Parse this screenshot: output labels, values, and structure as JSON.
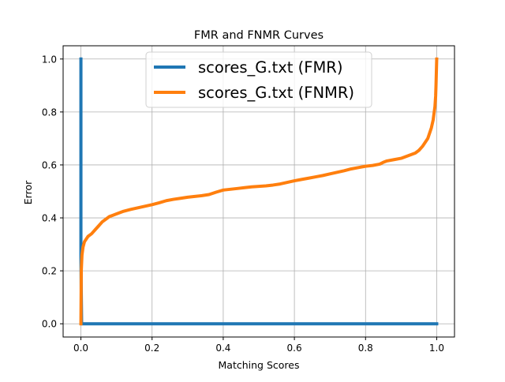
{
  "chart_data": {
    "type": "line",
    "title": "FMR and FNMR Curves",
    "xlabel": "Matching Scores",
    "ylabel": "Error",
    "xlim": [
      -0.05,
      1.05
    ],
    "ylim": [
      -0.05,
      1.05
    ],
    "xticks": [
      0.0,
      0.2,
      0.4,
      0.6,
      0.8,
      1.0
    ],
    "yticks": [
      0.0,
      0.2,
      0.4,
      0.6,
      0.8,
      1.0
    ],
    "xtick_labels": [
      "0.0",
      "0.2",
      "0.4",
      "0.6",
      "0.8",
      "1.0"
    ],
    "ytick_labels": [
      "0.0",
      "0.2",
      "0.4",
      "0.6",
      "0.8",
      "1.0"
    ],
    "grid": true,
    "legend_position": "top-center",
    "series": [
      {
        "name": "scores_G.txt (FMR)",
        "color": "#1f77b4",
        "x": [
          0.0,
          0.0,
          0.002,
          0.005,
          1.0
        ],
        "y": [
          1.0,
          0.25,
          0.0,
          0.0,
          0.0
        ]
      },
      {
        "name": "scores_G.txt (FNMR)",
        "color": "#ff7f0e",
        "x": [
          0.0,
          0.001,
          0.003,
          0.006,
          0.01,
          0.02,
          0.03,
          0.04,
          0.05,
          0.06,
          0.07,
          0.08,
          0.09,
          0.1,
          0.12,
          0.14,
          0.16,
          0.18,
          0.2,
          0.22,
          0.24,
          0.26,
          0.28,
          0.3,
          0.32,
          0.34,
          0.36,
          0.38,
          0.4,
          0.42,
          0.44,
          0.46,
          0.48,
          0.5,
          0.52,
          0.54,
          0.56,
          0.58,
          0.6,
          0.62,
          0.64,
          0.66,
          0.68,
          0.7,
          0.72,
          0.74,
          0.76,
          0.78,
          0.8,
          0.82,
          0.84,
          0.85,
          0.86,
          0.88,
          0.9,
          0.92,
          0.94,
          0.95,
          0.96,
          0.97,
          0.975,
          0.98,
          0.985,
          0.99,
          0.993,
          0.995,
          0.997,
          0.998,
          0.999,
          1.0
        ],
        "y": [
          0.0,
          0.2,
          0.26,
          0.29,
          0.31,
          0.33,
          0.34,
          0.355,
          0.37,
          0.385,
          0.395,
          0.405,
          0.41,
          0.415,
          0.425,
          0.432,
          0.438,
          0.444,
          0.45,
          0.457,
          0.465,
          0.47,
          0.474,
          0.478,
          0.481,
          0.484,
          0.488,
          0.497,
          0.505,
          0.508,
          0.511,
          0.514,
          0.517,
          0.519,
          0.521,
          0.524,
          0.528,
          0.534,
          0.54,
          0.545,
          0.55,
          0.555,
          0.56,
          0.566,
          0.572,
          0.578,
          0.585,
          0.59,
          0.595,
          0.598,
          0.603,
          0.61,
          0.615,
          0.62,
          0.625,
          0.635,
          0.645,
          0.655,
          0.67,
          0.69,
          0.7,
          0.72,
          0.74,
          0.77,
          0.8,
          0.82,
          0.86,
          0.9,
          0.95,
          1.0
        ]
      }
    ]
  }
}
